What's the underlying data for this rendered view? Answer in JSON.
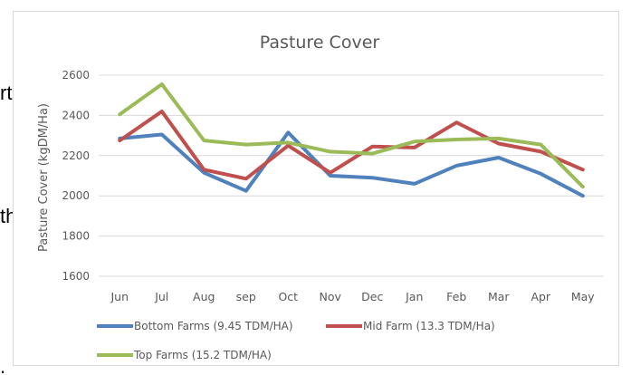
{
  "background": {
    "left_fragments": [
      "rt",
      "th",
      "."
    ]
  },
  "chart_data": {
    "type": "line",
    "title": "Pasture Cover",
    "xlabel": "",
    "ylabel": "Pasture Cover (kgDM/Ha)",
    "ylim": [
      1600,
      2600
    ],
    "yticks": [
      1600,
      1800,
      2000,
      2200,
      2400,
      2600
    ],
    "grid": true,
    "legend_position": "bottom",
    "categories": [
      "Jun",
      "Jul",
      "Aug",
      "sep",
      "Oct",
      "Nov",
      "Dec",
      "Jan",
      "Feb",
      "Mar",
      "Apr",
      "May"
    ],
    "series": [
      {
        "name": "Bottom Farms (9.45 TDM/HA)",
        "color": "#4f81bd",
        "values": [
          2285,
          2305,
          2115,
          2025,
          2315,
          2100,
          2090,
          2060,
          2150,
          2190,
          2110,
          2000
        ]
      },
      {
        "name": "Mid Farm (13.3 TDM/Ha)",
        "color": "#c0504d",
        "values": [
          2275,
          2420,
          2130,
          2085,
          2250,
          2115,
          2245,
          2240,
          2365,
          2260,
          2220,
          2130
        ]
      },
      {
        "name": "Top Farms (15.2 TDM/HA)",
        "color": "#9bbb59",
        "values": [
          2405,
          2555,
          2275,
          2255,
          2265,
          2220,
          2210,
          2270,
          2280,
          2285,
          2255,
          2045
        ]
      }
    ]
  }
}
